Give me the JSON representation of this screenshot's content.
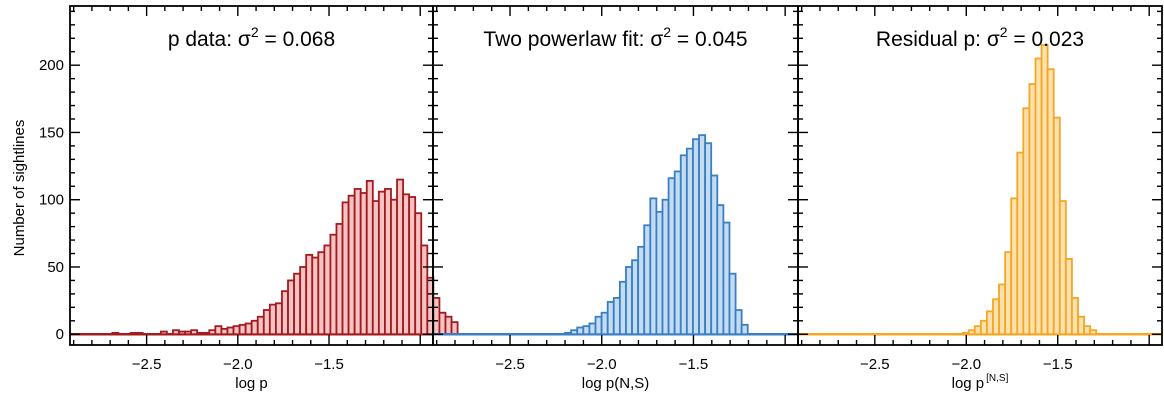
{
  "shared_ylabel": "Number of sightlines",
  "chart_data": [
    {
      "type": "bar",
      "title_prefix": "p data: σ",
      "title_exp": "2",
      "title_suffix": " = 0.068",
      "xlabel_main": "log p",
      "xlabel_sup": "",
      "xlabel_after": "",
      "color": "#a31a1f",
      "fill": "#f4c4c4",
      "xlim": [
        -2.92,
        -0.93
      ],
      "ylim": [
        -8,
        244
      ],
      "xticks": [
        -2.5,
        -2.0,
        -1.5
      ],
      "xtick_labels": [
        "−2.5",
        "−2.0",
        "−1.5"
      ],
      "yticks": [
        0,
        50,
        100,
        150,
        200
      ],
      "ytick_labels": [
        "0",
        "50",
        "100",
        "150",
        "200"
      ],
      "bin_start": -2.92,
      "bin_width": 0.0332,
      "values": [
        0,
        0,
        0,
        0,
        0,
        0,
        0,
        1,
        0,
        0,
        1,
        1,
        0,
        0,
        0,
        2,
        0,
        3,
        2,
        2,
        3,
        1,
        1,
        3,
        6,
        4,
        5,
        6,
        7,
        8,
        10,
        13,
        18,
        22,
        23,
        32,
        40,
        45,
        50,
        59,
        57,
        61,
        66,
        74,
        82,
        98,
        103,
        108,
        105,
        114,
        99,
        106,
        108,
        100,
        115,
        104,
        102,
        90,
        66,
        42,
        27,
        16,
        13,
        9
      ]
    },
    {
      "type": "bar",
      "title_prefix": "Two powerlaw fit: σ",
      "title_exp": "2",
      "title_suffix": " = 0.045",
      "xlabel_main": "log p(N,S)",
      "xlabel_sup": "",
      "xlabel_after": "",
      "color": "#3a7fc4",
      "fill": "#c4dcf2",
      "xlim": [
        -2.92,
        -0.93
      ],
      "ylim": [
        -8,
        244
      ],
      "xticks": [
        -2.5,
        -2.0,
        -1.5
      ],
      "xtick_labels": [
        "−2.5",
        "−2.0",
        "−1.5"
      ],
      "yticks": [
        0,
        50,
        100,
        150,
        200
      ],
      "ytick_labels": [
        "0",
        "50",
        "100",
        "150",
        "200"
      ],
      "bin_start": -2.2,
      "bin_width": 0.0332,
      "values": [
        1,
        3,
        5,
        6,
        8,
        13,
        16,
        24,
        27,
        39,
        50,
        55,
        65,
        81,
        101,
        91,
        100,
        116,
        121,
        133,
        138,
        145,
        148,
        142,
        118,
        96,
        83,
        45,
        18,
        7
      ]
    },
    {
      "type": "bar",
      "title_prefix": "Residual p: σ",
      "title_exp": "2",
      "title_suffix": " = 0.023",
      "xlabel_main": "log p",
      "xlabel_sup": "[N,S]",
      "xlabel_after": "",
      "color": "#f5a623",
      "fill": "#fde2b0",
      "xlim": [
        -2.92,
        -0.93
      ],
      "ylim": [
        -8,
        244
      ],
      "xticks": [
        -2.5,
        -2.0,
        -1.5
      ],
      "xtick_labels": [
        "−2.5",
        "−2.0",
        "−1.5"
      ],
      "yticks": [
        0,
        50,
        100,
        150,
        200
      ],
      "ytick_labels": [
        "0",
        "50",
        "100",
        "150",
        "200"
      ],
      "bin_start": -2.02,
      "bin_width": 0.0332,
      "values": [
        1,
        3,
        6,
        10,
        17,
        26,
        37,
        61,
        101,
        135,
        168,
        186,
        205,
        215,
        197,
        161,
        99,
        56,
        27,
        13,
        6,
        3
      ]
    }
  ]
}
